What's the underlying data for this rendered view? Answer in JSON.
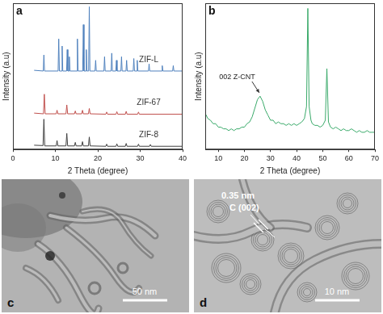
{
  "chart_data": [
    {
      "panel": "a",
      "type": "line",
      "x_label": "2 Theta (degree)",
      "y_label": "Intensity (a.u)",
      "xlim": [
        0,
        40
      ],
      "xticks": [
        0,
        10,
        20,
        30,
        40
      ],
      "ylim": [
        0,
        4.1
      ],
      "grid": false,
      "tick_labels": "x",
      "series": [
        {
          "name": "ZIF-L",
          "color": "#4f81bd",
          "x": [
            5,
            7.15,
            7.3,
            7.45,
            10.65,
            10.8,
            10.95,
            11.45,
            11.6,
            11.75,
            12.65,
            12.8,
            12.95,
            13.15,
            13.3,
            13.45,
            15.05,
            15.2,
            15.35,
            16.45,
            16.6,
            16.75,
            17.15,
            17.3,
            17.45,
            17.85,
            18.0,
            18.15,
            19.35,
            19.5,
            19.65,
            21.45,
            21.6,
            21.75,
            23.15,
            23.3,
            23.45,
            24.25,
            24.4,
            24.55,
            25.45,
            25.6,
            25.75,
            26.65,
            26.8,
            26.95,
            28.35,
            28.5,
            28.65,
            29.15,
            29.3,
            29.45,
            31.95,
            32.1,
            32.25,
            35.05,
            35.2,
            35.35,
            37.65,
            37.8,
            37.95,
            40
          ],
          "values": [
            2.22,
            2.2,
            2.65,
            2.2,
            2.2,
            3.1,
            2.2,
            2.2,
            2.9,
            2.2,
            2.2,
            2.8,
            2.2,
            2.2,
            2.6,
            2.2,
            2.2,
            3.1,
            2.2,
            2.2,
            3.5,
            2.2,
            2.2,
            2.8,
            2.2,
            2.2,
            4.0,
            2.2,
            2.2,
            2.5,
            2.2,
            2.2,
            2.6,
            2.2,
            2.2,
            2.7,
            2.2,
            2.2,
            2.5,
            2.2,
            2.2,
            2.6,
            2.2,
            2.2,
            2.5,
            2.2,
            2.2,
            2.55,
            2.2,
            2.2,
            2.5,
            2.2,
            2.2,
            2.4,
            2.2,
            2.2,
            2.35,
            2.2,
            2.2,
            2.35,
            2.2,
            2.2
          ]
        },
        {
          "name": "ZIF-67",
          "color": "#c0504d",
          "x": [
            5,
            7.2,
            7.4,
            7.6,
            10.2,
            10.4,
            10.6,
            12.5,
            12.7,
            12.9,
            14.5,
            14.7,
            14.9,
            16.2,
            16.4,
            16.6,
            17.8,
            18.0,
            18.2,
            21.9,
            22.1,
            22.3,
            24.3,
            24.5,
            24.7,
            26.5,
            26.7,
            26.9,
            29.4,
            29.6,
            29.8,
            40
          ],
          "values": [
            1.02,
            1.0,
            1.55,
            1.0,
            1.0,
            1.1,
            1.0,
            1.0,
            1.25,
            1.0,
            1.0,
            1.08,
            1.0,
            1.0,
            1.1,
            1.0,
            1.0,
            1.15,
            1.0,
            0.99,
            1.05,
            0.99,
            0.99,
            1.06,
            0.99,
            0.99,
            1.07,
            0.99,
            0.99,
            1.05,
            0.99,
            0.99
          ]
        },
        {
          "name": "ZIF-8",
          "color": "#404040",
          "x": [
            5,
            7.1,
            7.3,
            7.5,
            10.2,
            10.4,
            10.6,
            12.5,
            12.7,
            12.9,
            14.5,
            14.7,
            14.9,
            16.2,
            16.4,
            16.6,
            17.8,
            18.0,
            18.2,
            21.9,
            22.1,
            22.3,
            24.3,
            24.5,
            24.7,
            26.5,
            26.7,
            26.9,
            29.4,
            29.6,
            29.8,
            32.2,
            32.4,
            32.6,
            40
          ],
          "values": [
            0.12,
            0.11,
            0.85,
            0.1,
            0.1,
            0.25,
            0.1,
            0.1,
            0.45,
            0.1,
            0.1,
            0.2,
            0.1,
            0.1,
            0.22,
            0.1,
            0.1,
            0.35,
            0.1,
            0.09,
            0.15,
            0.09,
            0.09,
            0.16,
            0.09,
            0.09,
            0.17,
            0.09,
            0.09,
            0.15,
            0.09,
            0.09,
            0.14,
            0.09,
            0.09
          ]
        }
      ]
    },
    {
      "panel": "b",
      "type": "line",
      "x_label": "2 Theta (degree)",
      "y_label": "Intensity (a.u)",
      "xlim": [
        5,
        70
      ],
      "xticks": [
        10,
        20,
        30,
        40,
        50,
        60,
        70
      ],
      "ylim": [
        0.15,
        1.0
      ],
      "grid": false,
      "tick_labels": "x",
      "annotations": [
        {
          "text": "002 Z-CNT",
          "x": 26,
          "y": 0.47
        }
      ],
      "series": [
        {
          "color": "#3aaa6a",
          "x": [
            5,
            6,
            7,
            8,
            9,
            10,
            11,
            12,
            13,
            14,
            15,
            16,
            17,
            18,
            19,
            20,
            21,
            22,
            23,
            24,
            25,
            26,
            27,
            28,
            29,
            30,
            31,
            32,
            33,
            34,
            35,
            36,
            37,
            38,
            39,
            40,
            41,
            42,
            43,
            43.8,
            44.3,
            44.8,
            45.5,
            46,
            47,
            48,
            49,
            50,
            51,
            51.6,
            52.2,
            53,
            54,
            55,
            56,
            57,
            58,
            59,
            60,
            61,
            62,
            63,
            64,
            65,
            66,
            67,
            68,
            69,
            70
          ],
          "values": [
            0.36,
            0.33,
            0.32,
            0.3,
            0.3,
            0.28,
            0.28,
            0.27,
            0.27,
            0.26,
            0.27,
            0.26,
            0.27,
            0.27,
            0.28,
            0.28,
            0.3,
            0.31,
            0.34,
            0.39,
            0.44,
            0.46,
            0.43,
            0.38,
            0.35,
            0.32,
            0.32,
            0.3,
            0.31,
            0.3,
            0.3,
            0.29,
            0.3,
            0.29,
            0.3,
            0.29,
            0.3,
            0.31,
            0.33,
            0.4,
            0.97,
            0.4,
            0.32,
            0.3,
            0.29,
            0.29,
            0.28,
            0.29,
            0.32,
            0.62,
            0.31,
            0.28,
            0.27,
            0.28,
            0.27,
            0.26,
            0.27,
            0.26,
            0.26,
            0.27,
            0.26,
            0.25,
            0.26,
            0.25,
            0.25,
            0.26,
            0.25,
            0.25,
            0.25
          ]
        }
      ]
    }
  ],
  "images": [
    {
      "panel": "c",
      "scale_bar": "50 nm"
    },
    {
      "panel": "d",
      "scale_bar": "10 nm",
      "annotations": [
        "0.35 nm",
        "C (002)"
      ]
    }
  ]
}
